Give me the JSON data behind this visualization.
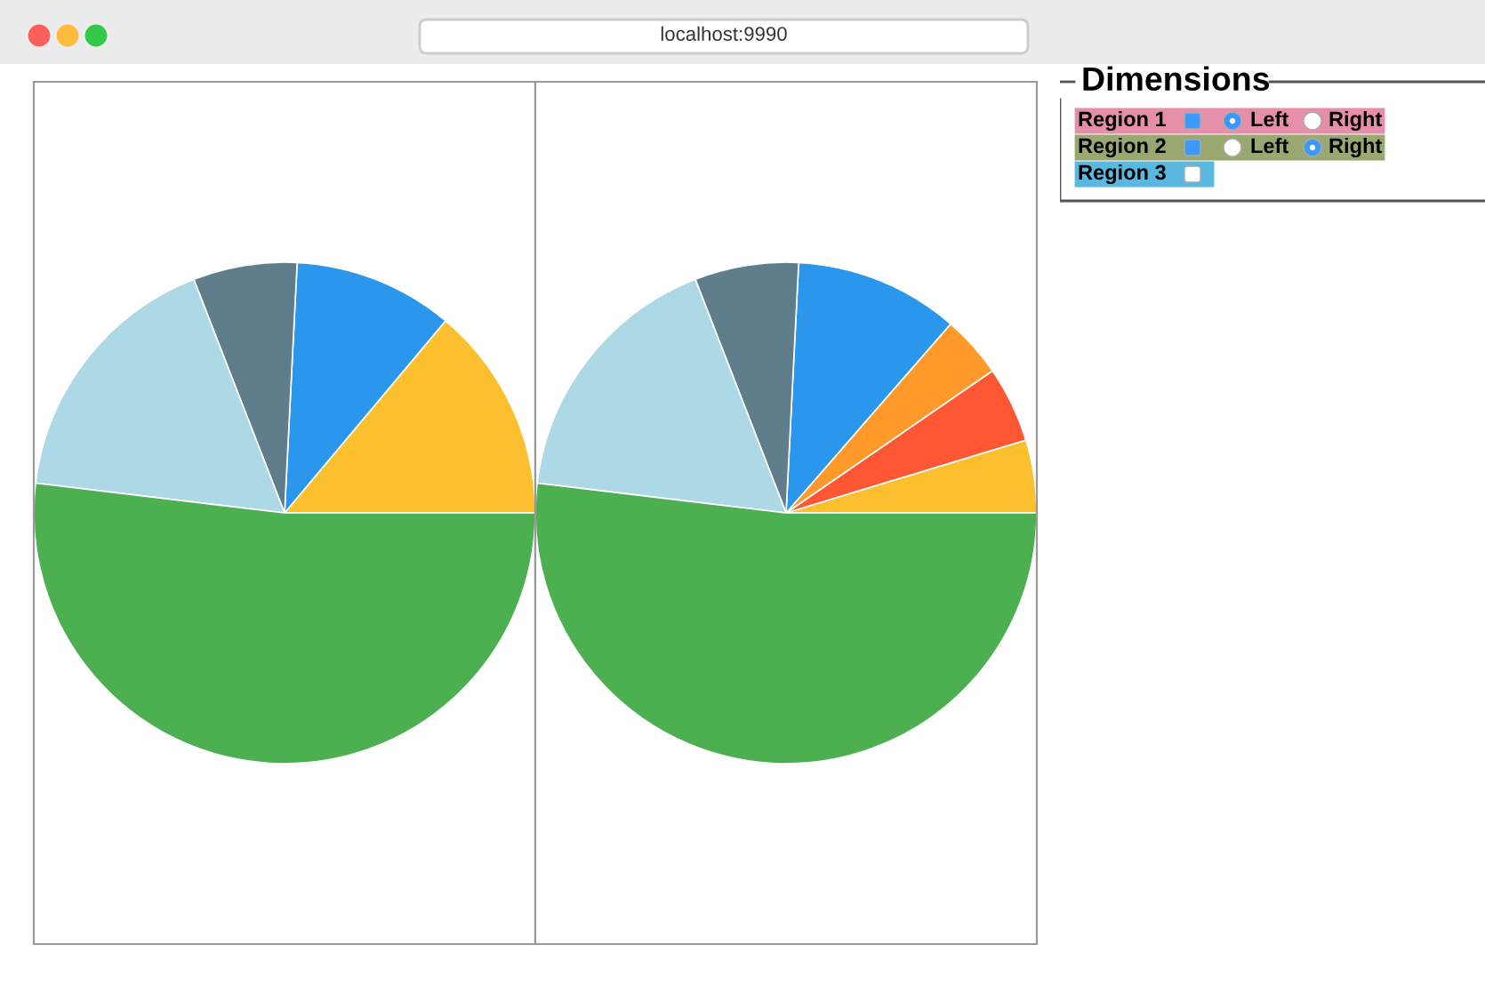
{
  "chart_data": [
    {
      "type": "pie",
      "categories": [
        null,
        null,
        null,
        null,
        null
      ],
      "values": [
        13.9,
        10.3,
        6.7,
        17.2,
        51.9
      ],
      "colors": [
        "#fcbf2e",
        "#2a96ec",
        "#607d8b",
        "#add8e6",
        "#4caf50"
      ]
    },
    {
      "type": "pie",
      "categories": [
        null,
        null,
        null,
        null,
        null,
        null,
        null
      ],
      "values": [
        4.7,
        4.9,
        4.0,
        10.6,
        6.7,
        17.2,
        51.9
      ],
      "colors": [
        "#fcbf2e",
        "#ff5733",
        "#ff9a2a",
        "#2a96ec",
        "#607d8b",
        "#add8e6",
        "#4caf50"
      ]
    },
    {
      "type": "other",
      "title": "Dimensions",
      "annotations": [
        "Region 1",
        "Left",
        "Right",
        "Region 2",
        "Left",
        "Right",
        "Region 3",
        "localhost:9990"
      ]
    }
  ]
}
